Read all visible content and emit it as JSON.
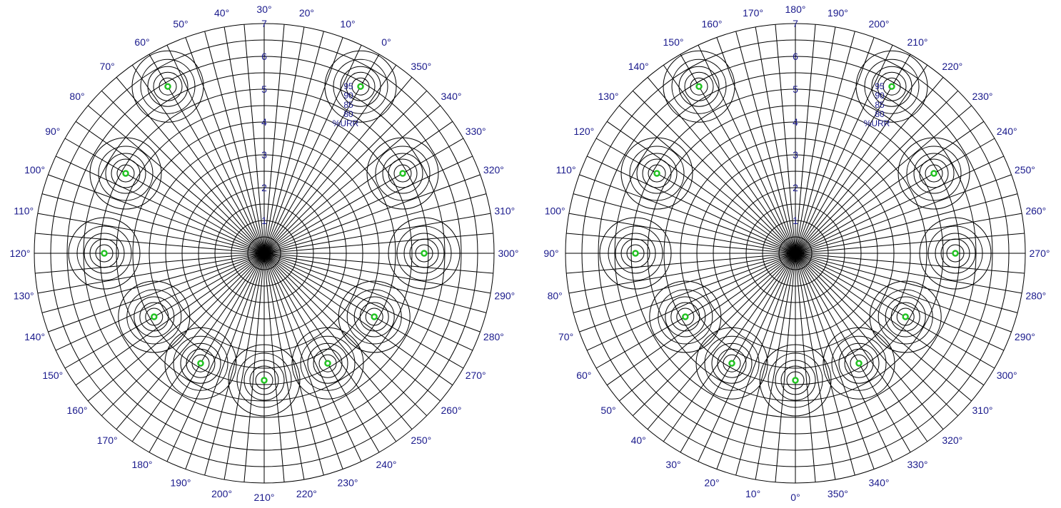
{
  "colors": {
    "grid": "#000000",
    "label": "#1a1a8c",
    "target": "#22c322"
  },
  "diagrams": [
    {
      "name": "left-polar-plot",
      "angle_labels": [
        "0°",
        "10°",
        "20°",
        "30°",
        "40°",
        "50°",
        "60°",
        "70°",
        "80°",
        "90°",
        "100°",
        "110°",
        "120°",
        "130°",
        "140°",
        "150°",
        "160°",
        "170°",
        "180°",
        "190°",
        "200°",
        "210°",
        "220°",
        "230°",
        "240°",
        "250°",
        "260°",
        "270°",
        "280°",
        "290°",
        "300°",
        "310°",
        "320°",
        "330°",
        "340°",
        "350°"
      ],
      "top_label_index": 3
    },
    {
      "name": "right-polar-plot",
      "angle_labels": [
        "0°",
        "10°",
        "20°",
        "30°",
        "40°",
        "50°",
        "60°",
        "70°",
        "80°",
        "90°",
        "100°",
        "110°",
        "120°",
        "130°",
        "140°",
        "150°",
        "160°",
        "170°",
        "180°",
        "190°",
        "200°",
        "210°",
        "220°",
        "230°",
        "240°",
        "250°",
        "260°",
        "270°",
        "280°",
        "290°",
        "300°",
        "310°",
        "320°",
        "330°",
        "340°",
        "350°"
      ],
      "top_label_index": 18
    }
  ],
  "radial_labels": [
    "1",
    "2",
    "3",
    "4",
    "5",
    "6",
    "7"
  ],
  "urr_labels": [
    "95",
    "90",
    "85",
    "80",
    "%URR"
  ],
  "targets": [
    {
      "ring": 6,
      "clock": 1
    },
    {
      "ring": 6,
      "clock": 11
    },
    {
      "ring": 5,
      "clock": 2
    },
    {
      "ring": 5,
      "clock": 10
    },
    {
      "ring": 5,
      "clock": 3
    },
    {
      "ring": 5,
      "clock": 9
    },
    {
      "ring": 4,
      "clock": 4
    },
    {
      "ring": 4,
      "clock": 8
    },
    {
      "ring": 4,
      "clock": 5
    },
    {
      "ring": 4,
      "clock": 7
    },
    {
      "ring": 4,
      "clock": 6
    }
  ]
}
